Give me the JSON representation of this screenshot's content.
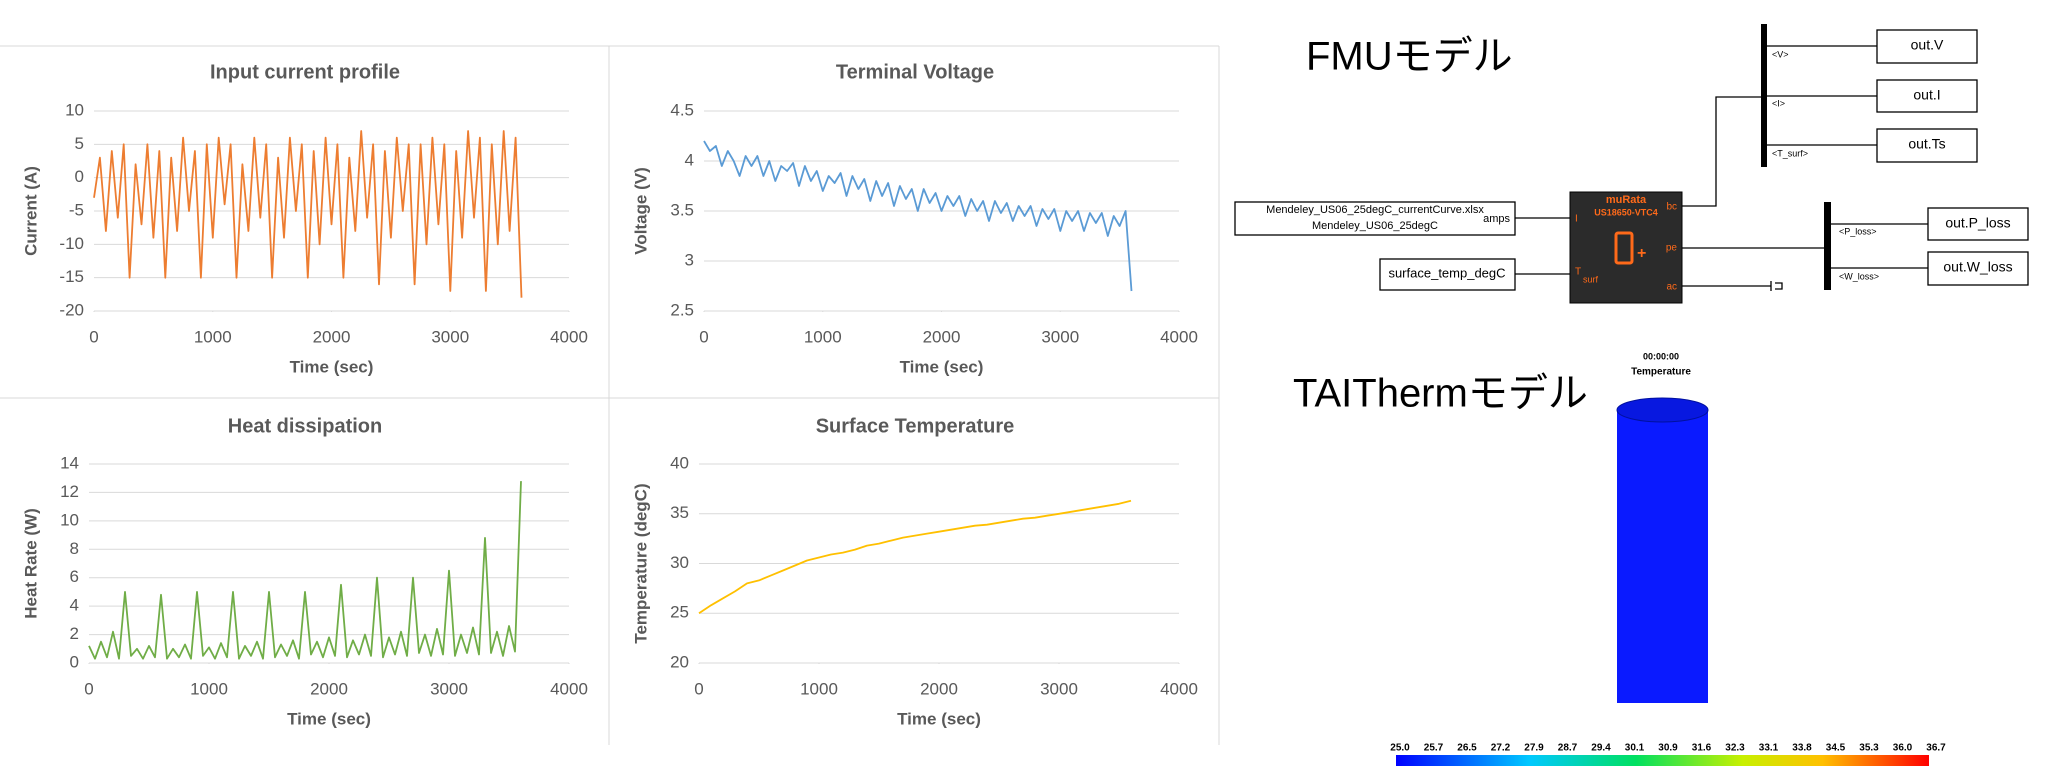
{
  "chart_data": [
    {
      "type": "line",
      "title": "Input current profile",
      "x_label": "Time (sec)",
      "y_label": "Current (A)",
      "color": "#ed7d31",
      "x": [
        0,
        50,
        100,
        150,
        200,
        250,
        300,
        350,
        400,
        450,
        500,
        550,
        600,
        650,
        700,
        750,
        800,
        850,
        900,
        950,
        1000,
        1050,
        1100,
        1150,
        1200,
        1250,
        1300,
        1350,
        1400,
        1450,
        1500,
        1550,
        1600,
        1650,
        1700,
        1750,
        1800,
        1850,
        1900,
        1950,
        2000,
        2050,
        2100,
        2150,
        2200,
        2250,
        2300,
        2350,
        2400,
        2450,
        2500,
        2550,
        2600,
        2650,
        2700,
        2750,
        2800,
        2850,
        2900,
        2950,
        3000,
        3050,
        3100,
        3150,
        3200,
        3250,
        3300,
        3350,
        3400,
        3450,
        3500,
        3550,
        3600
      ],
      "values": [
        -3,
        3,
        -8,
        4,
        -6,
        5,
        -15,
        2,
        -7,
        5,
        -9,
        4,
        -15,
        3,
        -8,
        6,
        -5,
        4,
        -15,
        5,
        -9,
        6,
        -4,
        5,
        -15,
        2,
        -8,
        6,
        -6,
        5,
        -15,
        3,
        -9,
        6,
        -5,
        5,
        -15,
        4,
        -10,
        6,
        -7,
        5,
        -15,
        3,
        -8,
        7,
        -6,
        5,
        -16,
        4,
        -9,
        6,
        -5,
        5,
        -16,
        5,
        -10,
        6,
        -7,
        5,
        -17,
        4,
        -9,
        7,
        -6,
        6,
        -17,
        5,
        -10,
        7,
        -8,
        6,
        -18
      ],
      "xlim": [
        0,
        4000
      ],
      "xticks": [
        0,
        1000,
        2000,
        3000,
        4000
      ],
      "ylim": [
        -20,
        10
      ],
      "yticks": [
        -20,
        -15,
        -10,
        -5,
        0,
        5,
        10
      ],
      "grid": true
    },
    {
      "type": "line",
      "title": "Terminal Voltage",
      "x_label": "Time (sec)",
      "y_label": "Voltage (V)",
      "color": "#5b9bd5",
      "x": [
        0,
        50,
        100,
        150,
        200,
        250,
        300,
        350,
        400,
        450,
        500,
        550,
        600,
        650,
        700,
        750,
        800,
        850,
        900,
        950,
        1000,
        1050,
        1100,
        1150,
        1200,
        1250,
        1300,
        1350,
        1400,
        1450,
        1500,
        1550,
        1600,
        1650,
        1700,
        1750,
        1800,
        1850,
        1900,
        1950,
        2000,
        2050,
        2100,
        2150,
        2200,
        2250,
        2300,
        2350,
        2400,
        2450,
        2500,
        2550,
        2600,
        2650,
        2700,
        2750,
        2800,
        2850,
        2900,
        2950,
        3000,
        3050,
        3100,
        3150,
        3200,
        3250,
        3300,
        3350,
        3400,
        3450,
        3500,
        3550,
        3600
      ],
      "values": [
        4.2,
        4.1,
        4.15,
        3.95,
        4.1,
        4.0,
        3.85,
        4.05,
        3.95,
        4.05,
        3.85,
        4.0,
        3.8,
        3.95,
        3.9,
        3.98,
        3.75,
        3.95,
        3.8,
        3.9,
        3.7,
        3.85,
        3.78,
        3.88,
        3.65,
        3.85,
        3.72,
        3.82,
        3.6,
        3.8,
        3.65,
        3.78,
        3.55,
        3.75,
        3.62,
        3.72,
        3.5,
        3.72,
        3.58,
        3.68,
        3.5,
        3.65,
        3.55,
        3.65,
        3.45,
        3.62,
        3.5,
        3.6,
        3.4,
        3.6,
        3.48,
        3.58,
        3.4,
        3.55,
        3.45,
        3.55,
        3.35,
        3.52,
        3.42,
        3.52,
        3.3,
        3.5,
        3.4,
        3.5,
        3.3,
        3.48,
        3.38,
        3.48,
        3.25,
        3.45,
        3.35,
        3.5,
        2.7
      ],
      "xlim": [
        0,
        4000
      ],
      "xticks": [
        0,
        1000,
        2000,
        3000,
        4000
      ],
      "ylim": [
        2.5,
        4.5
      ],
      "yticks": [
        2.5,
        3,
        3.5,
        4,
        4.5
      ],
      "grid": true
    },
    {
      "type": "line",
      "title": "Heat dissipation",
      "x_label": "Time (sec)",
      "y_label": "Heat Rate (W)",
      "color": "#70ad47",
      "x": [
        0,
        50,
        100,
        150,
        200,
        250,
        300,
        350,
        400,
        450,
        500,
        550,
        600,
        650,
        700,
        750,
        800,
        850,
        900,
        950,
        1000,
        1050,
        1100,
        1150,
        1200,
        1250,
        1300,
        1350,
        1400,
        1450,
        1500,
        1550,
        1600,
        1650,
        1700,
        1750,
        1800,
        1850,
        1900,
        1950,
        2000,
        2050,
        2100,
        2150,
        2200,
        2250,
        2300,
        2350,
        2400,
        2450,
        2500,
        2550,
        2600,
        2650,
        2700,
        2750,
        2800,
        2850,
        2900,
        2950,
        3000,
        3050,
        3100,
        3150,
        3200,
        3250,
        3300,
        3350,
        3400,
        3450,
        3500,
        3550,
        3600
      ],
      "values": [
        1.2,
        0.3,
        1.5,
        0.4,
        2.2,
        0.3,
        5.0,
        0.5,
        1.0,
        0.3,
        1.2,
        0.4,
        4.8,
        0.3,
        1.0,
        0.4,
        1.3,
        0.3,
        5.0,
        0.5,
        1.1,
        0.3,
        1.4,
        0.4,
        5.0,
        0.3,
        1.2,
        0.5,
        1.5,
        0.3,
        5.0,
        0.4,
        1.3,
        0.5,
        1.6,
        0.3,
        5.0,
        0.6,
        1.5,
        0.4,
        1.8,
        0.5,
        5.5,
        0.4,
        1.6,
        0.6,
        2.0,
        0.5,
        6.0,
        0.4,
        1.8,
        0.6,
        2.2,
        0.5,
        6.0,
        0.7,
        2.0,
        0.5,
        2.4,
        0.6,
        6.5,
        0.5,
        2.0,
        0.7,
        2.5,
        0.6,
        8.8,
        0.7,
        2.2,
        0.5,
        2.6,
        0.8,
        12.8
      ],
      "xlim": [
        0,
        4000
      ],
      "xticks": [
        0,
        1000,
        2000,
        3000,
        4000
      ],
      "ylim": [
        0,
        14
      ],
      "yticks": [
        0,
        2,
        4,
        6,
        8,
        10,
        12,
        14
      ],
      "grid": true
    },
    {
      "type": "line",
      "title": "Surface Temperature",
      "x_label": "Time (sec)",
      "y_label": "Temperature (degC)",
      "color": "#ffc000",
      "x": [
        0,
        100,
        200,
        300,
        400,
        500,
        600,
        700,
        800,
        900,
        1000,
        1100,
        1200,
        1300,
        1400,
        1500,
        1600,
        1700,
        1800,
        1900,
        2000,
        2100,
        2200,
        2300,
        2400,
        2500,
        2600,
        2700,
        2800,
        2900,
        3000,
        3100,
        3200,
        3300,
        3400,
        3500,
        3600
      ],
      "values": [
        25,
        25.8,
        26.5,
        27.2,
        28.0,
        28.3,
        28.8,
        29.3,
        29.8,
        30.3,
        30.6,
        30.9,
        31.1,
        31.4,
        31.8,
        32.0,
        32.3,
        32.6,
        32.8,
        33.0,
        33.2,
        33.4,
        33.6,
        33.8,
        33.9,
        34.1,
        34.3,
        34.5,
        34.6,
        34.8,
        35.0,
        35.2,
        35.4,
        35.6,
        35.8,
        36.0,
        36.3
      ],
      "xlim": [
        0,
        4000
      ],
      "xticks": [
        0,
        1000,
        2000,
        3000,
        4000
      ],
      "ylim": [
        20,
        40
      ],
      "yticks": [
        20,
        25,
        30,
        35,
        40
      ],
      "grid": true
    }
  ],
  "fmu_model": {
    "title": "FMUモデル",
    "source_block": {
      "lines": [
        "Mendeley_US06_25degC_currentCurve.xlsx",
        "Mendeley_US06_25degC"
      ],
      "port": "amps"
    },
    "temp_block": "surface_temp_degC",
    "battery_block": {
      "maker": "muRata",
      "model": "US18650-VTC4",
      "inputs": [
        "I",
        "T",
        "surf"
      ],
      "outputs": [
        "bc",
        "pe",
        "ac"
      ]
    },
    "signals": [
      "<V>",
      "<I>",
      "<T_surf>",
      "<P_loss>",
      "<W_loss>"
    ],
    "outputs": [
      "out.V",
      "out.I",
      "out.Ts",
      "out.P_loss",
      "out.W_loss"
    ]
  },
  "taitherm_model": {
    "title": "TAIThermモデル",
    "time": "00:00:00",
    "quantity": "Temperature",
    "colorbar_labels": [
      "25.0",
      "25.7",
      "26.5",
      "27.2",
      "27.9",
      "28.7",
      "29.4",
      "30.1",
      "30.9",
      "31.6",
      "32.3",
      "33.1",
      "33.8",
      "34.5",
      "35.3",
      "36.0",
      "36.7"
    ]
  }
}
